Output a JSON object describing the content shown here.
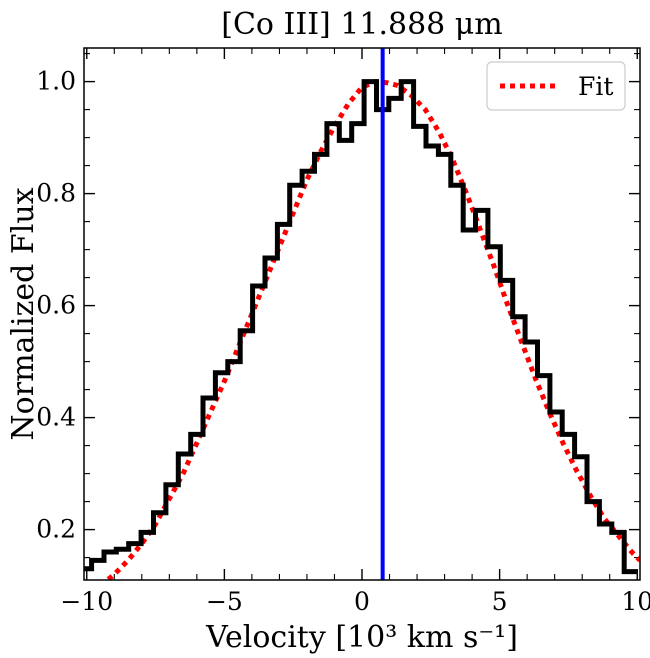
{
  "chart_data": {
    "type": "line",
    "title": "[Co III] 11.888 μm",
    "xlabel": "Velocity [10³ km s⁻¹]",
    "ylabel": "Normalized Flux",
    "xlim": [
      -10.1,
      10.1
    ],
    "ylim": [
      0.11,
      1.06
    ],
    "xticks": [
      -10,
      -5,
      0,
      5,
      10
    ],
    "xtick_labels": [
      "−10",
      "−5",
      "0",
      "5",
      "10"
    ],
    "yticks": [
      0.2,
      0.4,
      0.6,
      0.8,
      1.0
    ],
    "ytick_labels": [
      "0.2",
      "0.4",
      "0.6",
      "0.8",
      "1.0"
    ],
    "grid": false,
    "legend": {
      "position": "top-right",
      "entries": [
        "Fit"
      ]
    },
    "series": [
      {
        "drawstyle": "steps-mid",
        "color": "#000000",
        "x": [
          -10.05,
          -9.6,
          -9.15,
          -8.7,
          -8.25,
          -7.8,
          -7.35,
          -6.9,
          -6.45,
          -6.0,
          -5.55,
          -5.1,
          -4.65,
          -4.2,
          -3.75,
          -3.3,
          -2.85,
          -2.4,
          -1.95,
          -1.5,
          -1.05,
          -0.6,
          -0.15,
          0.3,
          0.75,
          1.2,
          1.65,
          2.1,
          2.55,
          3.0,
          3.45,
          3.9,
          4.35,
          4.8,
          5.25,
          5.7,
          6.15,
          6.6,
          7.05,
          7.5,
          7.95,
          8.4,
          8.85,
          9.3,
          9.75
        ],
        "y": [
          0.13,
          0.145,
          0.16,
          0.165,
          0.175,
          0.195,
          0.23,
          0.28,
          0.335,
          0.37,
          0.435,
          0.48,
          0.5,
          0.555,
          0.635,
          0.685,
          0.745,
          0.815,
          0.84,
          0.87,
          0.925,
          0.895,
          0.925,
          1.0,
          0.95,
          0.97,
          1.0,
          0.92,
          0.885,
          0.87,
          0.815,
          0.735,
          0.77,
          0.705,
          0.645,
          0.58,
          0.535,
          0.475,
          0.41,
          0.37,
          0.33,
          0.25,
          0.21,
          0.195,
          0.125
        ]
      },
      {
        "name": "Fit",
        "linestyle": "dotted",
        "color": "#ff0000",
        "x": [
          -9.5,
          -9,
          -8.5,
          -8,
          -7.5,
          -7,
          -6.5,
          -6,
          -5.5,
          -5,
          -4.5,
          -4,
          -3.5,
          -3,
          -2.5,
          -2,
          -1.5,
          -1,
          -0.5,
          0,
          0.5,
          0.9,
          1.3,
          1.8,
          2.3,
          2.8,
          3.3,
          3.8,
          4.3,
          4.8,
          5.3,
          5.8,
          6.3,
          6.8,
          7.3,
          7.8,
          8.3,
          8.8,
          9.3,
          9.8,
          10.1
        ],
        "y": [
          0.1,
          0.12,
          0.145,
          0.175,
          0.21,
          0.255,
          0.3,
          0.355,
          0.41,
          0.465,
          0.525,
          0.585,
          0.645,
          0.705,
          0.765,
          0.825,
          0.875,
          0.92,
          0.96,
          0.99,
          1.0,
          0.998,
          0.993,
          0.975,
          0.95,
          0.91,
          0.86,
          0.8,
          0.735,
          0.67,
          0.6,
          0.535,
          0.47,
          0.41,
          0.355,
          0.305,
          0.26,
          0.22,
          0.19,
          0.16,
          0.145
        ]
      }
    ],
    "vlines": [
      {
        "x": 0.75,
        "color": "#0000ff"
      }
    ]
  }
}
